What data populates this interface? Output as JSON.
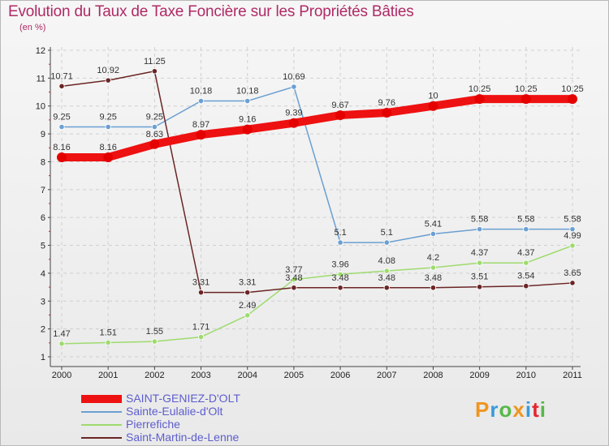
{
  "chart_data": {
    "type": "line",
    "title": "Evolution du Taux de Taxe Foncière sur les Propriétés Bâties",
    "ylabel": "(en %)",
    "xlabel": "",
    "ylim": [
      1,
      12
    ],
    "y_ticks": [
      "1",
      "2",
      "3",
      "4",
      "5",
      "6",
      "7",
      "8",
      "9",
      "10",
      "11",
      "12"
    ],
    "categories": [
      "2000",
      "2001",
      "2002",
      "2003",
      "2004",
      "2005",
      "2006",
      "2007",
      "2008",
      "2009",
      "2010",
      "2011"
    ],
    "legend_position": "bottom-left",
    "series": [
      {
        "name": "SAINT-GENIEZ-D'OLT",
        "color": "#ee1111",
        "values": [
          8.16,
          8.16,
          8.63,
          8.97,
          9.16,
          9.39,
          9.67,
          9.76,
          10,
          10.25,
          10.25,
          10.25
        ],
        "labels": [
          "8.16",
          "8.16",
          "8.63",
          "8.97",
          "9.16",
          "9.39",
          "9.67",
          "9.76",
          "10",
          "10.25",
          "10.25",
          "10.25"
        ]
      },
      {
        "name": "Sainte-Eulalie-d'Olt",
        "color": "#6b9fd2",
        "values": [
          9.25,
          9.25,
          9.25,
          10.18,
          10.18,
          10.69,
          5.1,
          5.1,
          5.41,
          5.58,
          5.58,
          5.58
        ],
        "labels": [
          "9.25",
          "9.25",
          "9.25",
          "10.18",
          "10.18",
          "10.69",
          "5.1",
          "5.1",
          "5.41",
          "5.58",
          "5.58",
          "5.58"
        ]
      },
      {
        "name": "Pierrefiche",
        "color": "#9edb6e",
        "values": [
          1.47,
          1.51,
          1.55,
          1.71,
          2.49,
          3.77,
          3.96,
          4.08,
          4.2,
          4.37,
          4.37,
          4.99
        ],
        "labels": [
          "1.47",
          "1.51",
          "1.55",
          "1.71",
          "2.49",
          "3.77",
          "3.96",
          "4.08",
          "4.2",
          "4.37",
          "4.37",
          "4.99"
        ]
      },
      {
        "name": "Saint-Martin-de-Lenne",
        "color": "#6b2525",
        "values": [
          10.71,
          10.92,
          11.25,
          3.31,
          3.31,
          3.48,
          3.48,
          3.48,
          3.48,
          3.51,
          3.54,
          3.65
        ],
        "labels": [
          "10.71",
          "10.92",
          "11.25",
          "3.31",
          "3.31",
          "3.48",
          "3.48",
          "3.48",
          "3.48",
          "3.51",
          "3.54",
          "3.65"
        ]
      }
    ]
  },
  "logo": {
    "text": "Proxiti",
    "colors": [
      "#f0951e",
      "#3a9ad9",
      "#56b848",
      "#f0951e",
      "#3a9ad9",
      "#e3262f",
      "#56b848"
    ]
  }
}
